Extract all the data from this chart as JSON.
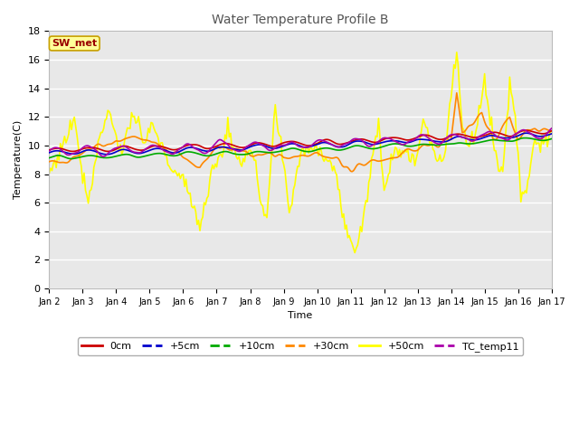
{
  "title": "Water Temperature Profile B",
  "xlabel": "Time",
  "ylabel": "Temperature(C)",
  "ylim": [
    0,
    18
  ],
  "yticks": [
    0,
    2,
    4,
    6,
    8,
    10,
    12,
    14,
    16,
    18
  ],
  "xlim": [
    0,
    360
  ],
  "fig_bg_color": "#ffffff",
  "plot_bg_color": "#e8e8e8",
  "grid_color": "#ffffff",
  "annotation_text": "SW_met",
  "annotation_bg": "#ffff99",
  "annotation_border": "#c8a000",
  "annotation_text_color": "#990000",
  "series": {
    "0cm": {
      "color": "#cc0000",
      "lw": 1.2,
      "zorder": 4
    },
    "+5cm": {
      "color": "#0000cc",
      "lw": 1.2,
      "zorder": 4
    },
    "+10cm": {
      "color": "#00aa00",
      "lw": 1.2,
      "zorder": 4
    },
    "+30cm": {
      "color": "#ff8800",
      "lw": 1.2,
      "zorder": 3
    },
    "+50cm": {
      "color": "#ffff00",
      "lw": 1.2,
      "zorder": 2
    },
    "TC_temp11": {
      "color": "#aa00aa",
      "lw": 1.2,
      "zorder": 4
    }
  },
  "x_tick_labels": [
    "Jan 2",
    "Jan 3",
    "Jan 4",
    "Jan 5",
    "Jan 6",
    "Jan 7",
    "Jan 8",
    "Jan 9",
    "Jan 10",
    "Jan 11",
    "Jan 12",
    "Jan 13",
    "Jan 14",
    "Jan 15",
    "Jan 16",
    "Jan 17"
  ],
  "x_tick_positions": [
    0,
    24,
    48,
    72,
    96,
    120,
    144,
    168,
    192,
    216,
    240,
    264,
    288,
    312,
    336,
    360
  ]
}
